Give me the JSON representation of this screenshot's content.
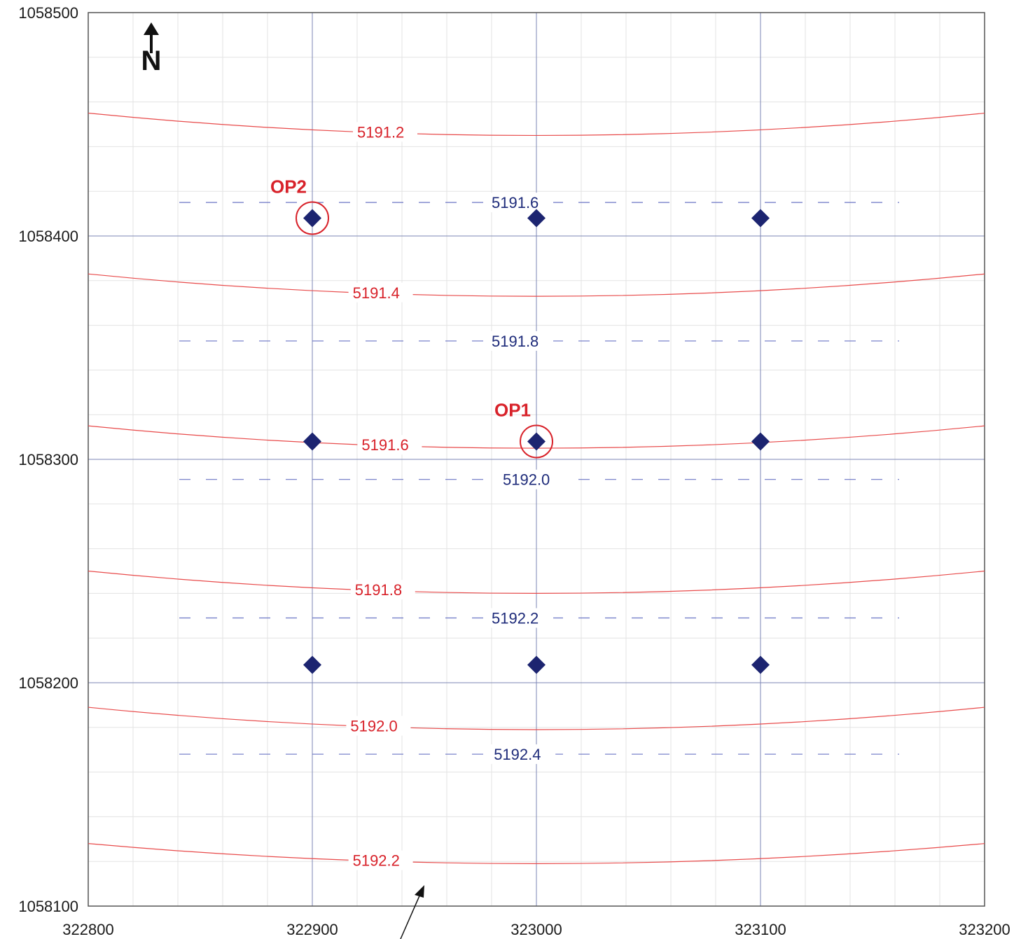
{
  "axes": {
    "x_ticks": [
      "322800",
      "322900",
      "323000",
      "323100",
      "323200"
    ],
    "y_ticks": [
      "1058500",
      "1058400",
      "1058300",
      "1058200",
      "1058100"
    ],
    "x_range": [
      322800,
      323200
    ],
    "y_range": [
      1058100,
      1058500
    ],
    "grid_major": 100,
    "grid_minor": 20
  },
  "north_arrow": {
    "label": "N"
  },
  "red_contours": [
    {
      "label": "5191.2",
      "y_edge": 1058455,
      "y_center": 1058445,
      "label_x": 322920
    },
    {
      "label": "5191.4",
      "y_edge": 1058383,
      "y_center": 1058373,
      "label_x": 322918
    },
    {
      "label": "5191.6",
      "y_edge": 1058315,
      "y_center": 1058305,
      "label_x": 322922
    },
    {
      "label": "5191.8",
      "y_edge": 1058250,
      "y_center": 1058240,
      "label_x": 322919
    },
    {
      "label": "5192.0",
      "y_edge": 1058189,
      "y_center": 1058179,
      "label_x": 322917
    },
    {
      "label": "5192.2",
      "y_edge": 1058128,
      "y_center": 1058119,
      "label_x": 322918
    }
  ],
  "blue_contours": [
    {
      "label": "5191.6",
      "y": 1058415,
      "label_x": 322980
    },
    {
      "label": "5191.8",
      "y": 1058353,
      "label_x": 322980
    },
    {
      "label": "5192.0",
      "y": 1058291,
      "label_x": 322985
    },
    {
      "label": "5192.2",
      "y": 1058229,
      "label_x": 322980
    },
    {
      "label": "5192.4",
      "y": 1058168,
      "label_x": 322981
    }
  ],
  "points": [
    {
      "x": 322900,
      "y": 1058408
    },
    {
      "x": 323000,
      "y": 1058408
    },
    {
      "x": 323100,
      "y": 1058408
    },
    {
      "x": 322900,
      "y": 1058308
    },
    {
      "x": 323000,
      "y": 1058308
    },
    {
      "x": 323100,
      "y": 1058308
    },
    {
      "x": 322900,
      "y": 1058208
    },
    {
      "x": 323000,
      "y": 1058208
    },
    {
      "x": 323100,
      "y": 1058208
    }
  ],
  "observation_points": [
    {
      "label": "OP2",
      "x": 322900,
      "y": 1058408
    },
    {
      "label": "OP1",
      "x": 323000,
      "y": 1058308
    }
  ],
  "colors": {
    "red_contour": "#e84a4a",
    "blue_contour": "#6a74c4",
    "point": "#1c2470",
    "op_circle": "#d8222a",
    "major_grid": "#7b86b5",
    "minor_grid": "#e3e3e3"
  }
}
